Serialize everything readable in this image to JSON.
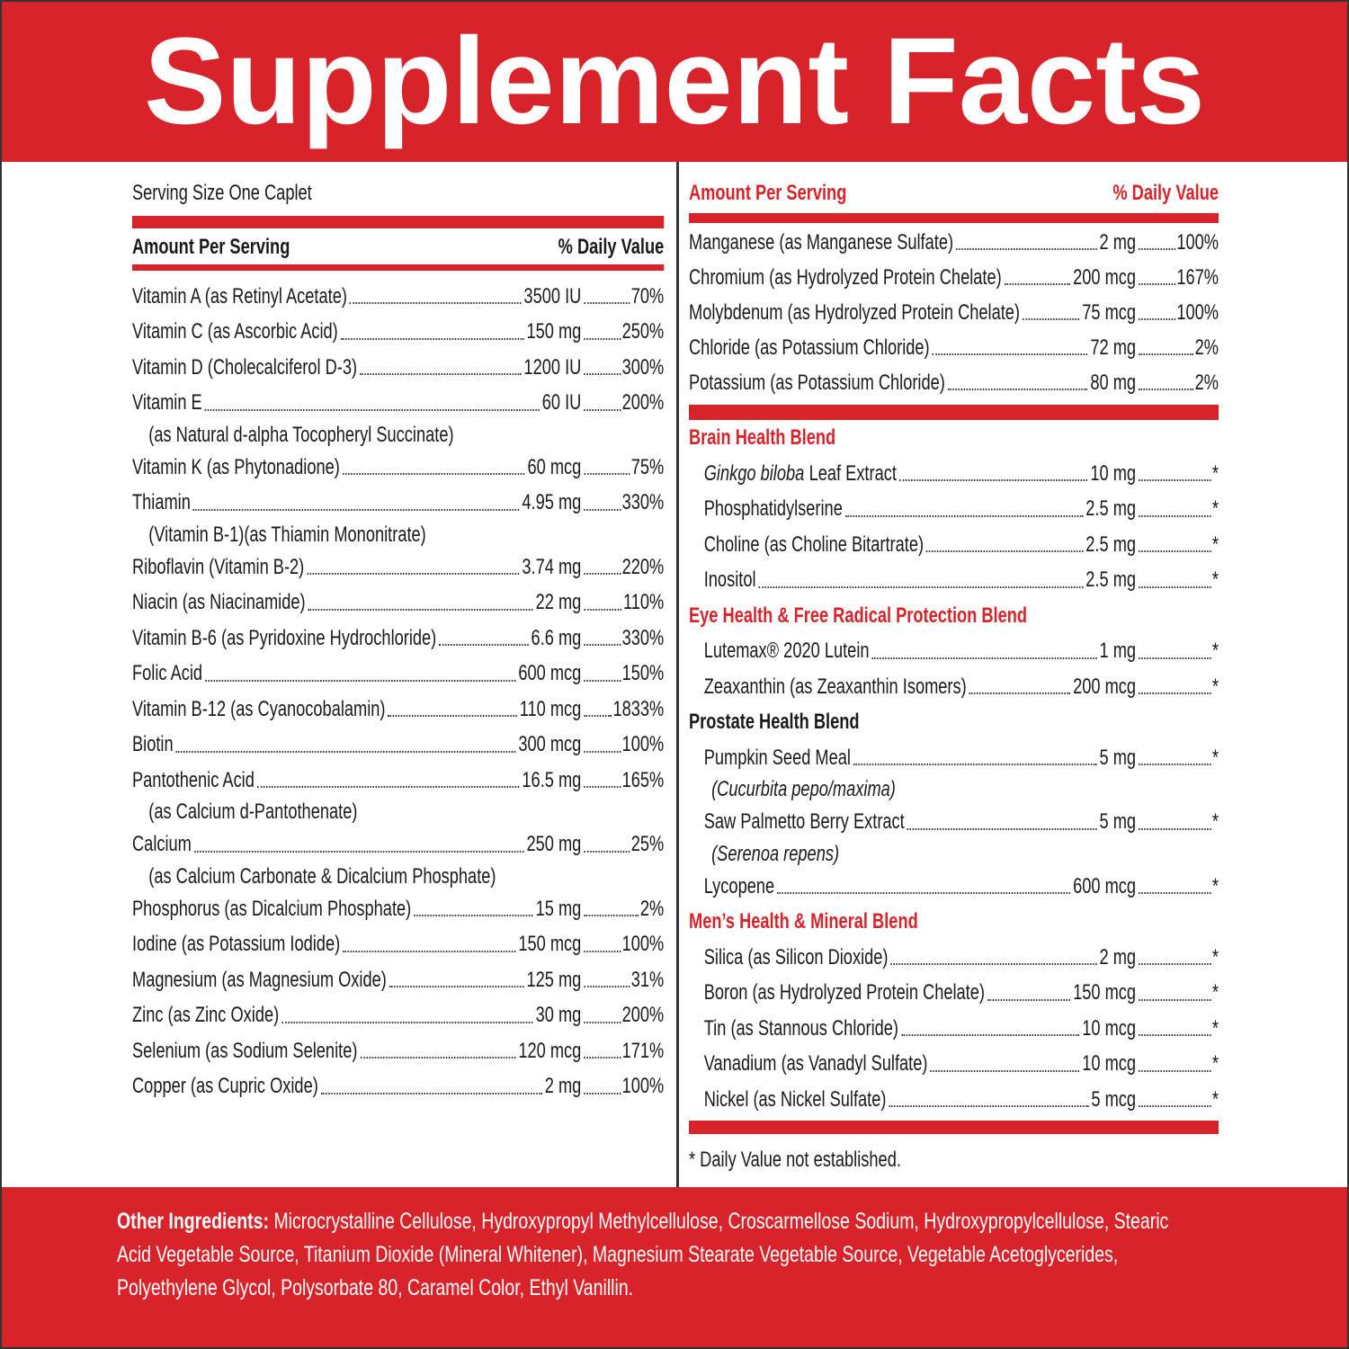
{
  "title": "Supplement Facts",
  "serving_size": "Serving Size One Caplet",
  "left": {
    "header": {
      "amount": "Amount Per Serving",
      "dv": "% Daily Value"
    },
    "rows": [
      {
        "name": "Vitamin A (as Retinyl Acetate)",
        "amount": "3500 IU",
        "dv": "70%"
      },
      {
        "name": "Vitamin C (as Ascorbic Acid)",
        "amount": "150 mg",
        "dv": "250%"
      },
      {
        "name": "Vitamin D (Cholecalciferol D-3)",
        "amount": "1200 IU",
        "dv": "300%"
      },
      {
        "name": "Vitamin E",
        "amount": "60 IU",
        "dv": "200%",
        "sub": "(as Natural d-alpha Tocopheryl Succinate)"
      },
      {
        "name": "Vitamin K (as Phytonadione)",
        "amount": "60 mcg",
        "dv": "75%"
      },
      {
        "name": "Thiamin",
        "amount": "4.95 mg",
        "dv": "330%",
        "sub": "(Vitamin B-1)(as Thiamin Mononitrate)"
      },
      {
        "name": "Riboflavin (Vitamin B-2)",
        "amount": "3.74 mg",
        "dv": "220%"
      },
      {
        "name": "Niacin (as Niacinamide)",
        "amount": "22 mg",
        "dv": "110%"
      },
      {
        "name": "Vitamin B-6 (as Pyridoxine Hydrochloride)",
        "amount": "6.6 mg",
        "dv": "330%"
      },
      {
        "name": "Folic Acid",
        "amount": "600 mcg",
        "dv": "150%"
      },
      {
        "name": "Vitamin B-12 (as Cyanocobalamin)",
        "amount": "110 mcg",
        "dv": "1833%"
      },
      {
        "name": "Biotin",
        "amount": "300 mcg",
        "dv": "100%"
      },
      {
        "name": "Pantothenic Acid",
        "amount": "16.5 mg",
        "dv": "165%",
        "sub": "(as Calcium d-Pantothenate)"
      },
      {
        "name": "Calcium",
        "amount": "250 mg",
        "dv": "25%",
        "sub": "(as Calcium Carbonate & Dicalcium Phosphate)"
      },
      {
        "name": "Phosphorus (as Dicalcium Phosphate)",
        "amount": "15 mg",
        "dv": "2%"
      },
      {
        "name": "Iodine (as Potassium Iodide)",
        "amount": "150 mcg",
        "dv": "100%"
      },
      {
        "name": "Magnesium (as Magnesium Oxide)",
        "amount": "125 mg",
        "dv": "31%"
      },
      {
        "name": "Zinc (as Zinc Oxide)",
        "amount": "30 mg",
        "dv": "200%"
      },
      {
        "name": "Selenium (as Sodium Selenite)",
        "amount": "120 mcg",
        "dv": "171%"
      },
      {
        "name": "Copper (as Cupric Oxide)",
        "amount": "2 mg",
        "dv": "100%"
      }
    ]
  },
  "right": {
    "header": {
      "amount": "Amount Per Serving",
      "dv": "% Daily Value"
    },
    "rows": [
      {
        "name": "Manganese (as Manganese Sulfate)",
        "amount": "2 mg",
        "dv": "100%"
      },
      {
        "name": "Chromium (as Hydrolyzed Protein Chelate)",
        "amount": "200 mcg",
        "dv": "167%"
      },
      {
        "name": "Molybdenum (as Hydrolyzed Protein Chelate)",
        "amount": "75 mcg",
        "dv": "100%"
      },
      {
        "name": "Chloride (as Potassium Chloride)",
        "amount": "72 mg",
        "dv": "2%"
      },
      {
        "name": "Potassium (as Potassium Chloride)",
        "amount": "80 mg",
        "dv": "2%"
      }
    ],
    "blends": [
      {
        "name": "Brain Health Blend",
        "color": "#d8232a",
        "items": [
          {
            "name_italic": "Ginkgo biloba",
            "name": "Leaf Extract",
            "amount": "10 mg",
            "dv": "*"
          },
          {
            "name": "Phosphatidylserine",
            "amount": "2.5 mg",
            "dv": "*"
          },
          {
            "name": "Choline (as Choline Bitartrate)",
            "amount": "2.5 mg",
            "dv": "*"
          },
          {
            "name": "Inositol",
            "amount": "2.5 mg",
            "dv": "*"
          }
        ]
      },
      {
        "name": "Eye Health & Free Radical Protection Blend",
        "color": "#d8232a",
        "items": [
          {
            "name": "Lutemax® 2020 Lutein",
            "amount": "1 mg",
            "dv": "*"
          },
          {
            "name": "Zeaxanthin (as Zeaxanthin Isomers)",
            "amount": "200 mcg",
            "dv": "*"
          }
        ]
      },
      {
        "name": "Prostate Health Blend",
        "color": "#1a1a1a",
        "items": [
          {
            "name": "Pumpkin Seed Meal",
            "amount": "5 mg",
            "dv": "*",
            "sub": "(Cucurbita pepo/maxima)"
          },
          {
            "name": "Saw Palmetto Berry Extract",
            "amount": "5 mg",
            "dv": "*",
            "sub": "(Serenoa repens)"
          },
          {
            "name": "Lycopene",
            "amount": "600 mcg",
            "dv": "*"
          }
        ]
      },
      {
        "name": "Men’s Health & Mineral Blend",
        "color": "#d8232a",
        "items": [
          {
            "name": "Silica (as Silicon Dioxide)",
            "amount": "2 mg",
            "dv": "*"
          },
          {
            "name": "Boron (as Hydrolyzed Protein Chelate)",
            "amount": "150 mcg",
            "dv": "*"
          },
          {
            "name": "Tin (as Stannous Chloride)",
            "amount": "10 mcg",
            "dv": "*"
          },
          {
            "name": "Vanadium (as Vanadyl Sulfate)",
            "amount": "10 mcg",
            "dv": "*"
          },
          {
            "name": "Nickel (as Nickel Sulfate)",
            "amount": "5 mcg",
            "dv": "*"
          }
        ]
      }
    ],
    "footnote": "* Daily Value not established."
  },
  "other_ingredients": {
    "label": "Other Ingredients:",
    "text": "Microcrystalline Cellulose, Hydroxypropyl Methylcellulose, Croscarmellose Sodium, Hydroxypropylcellulose, Stearic Acid Vegetable Source, Titanium Dioxide (Mineral Whitener), Magnesium Stearate Vegetable Source, Vegetable Acetoglycerides, Polyethylene Glycol, Polysorbate 80, Caramel Color, Ethyl Vanillin."
  }
}
